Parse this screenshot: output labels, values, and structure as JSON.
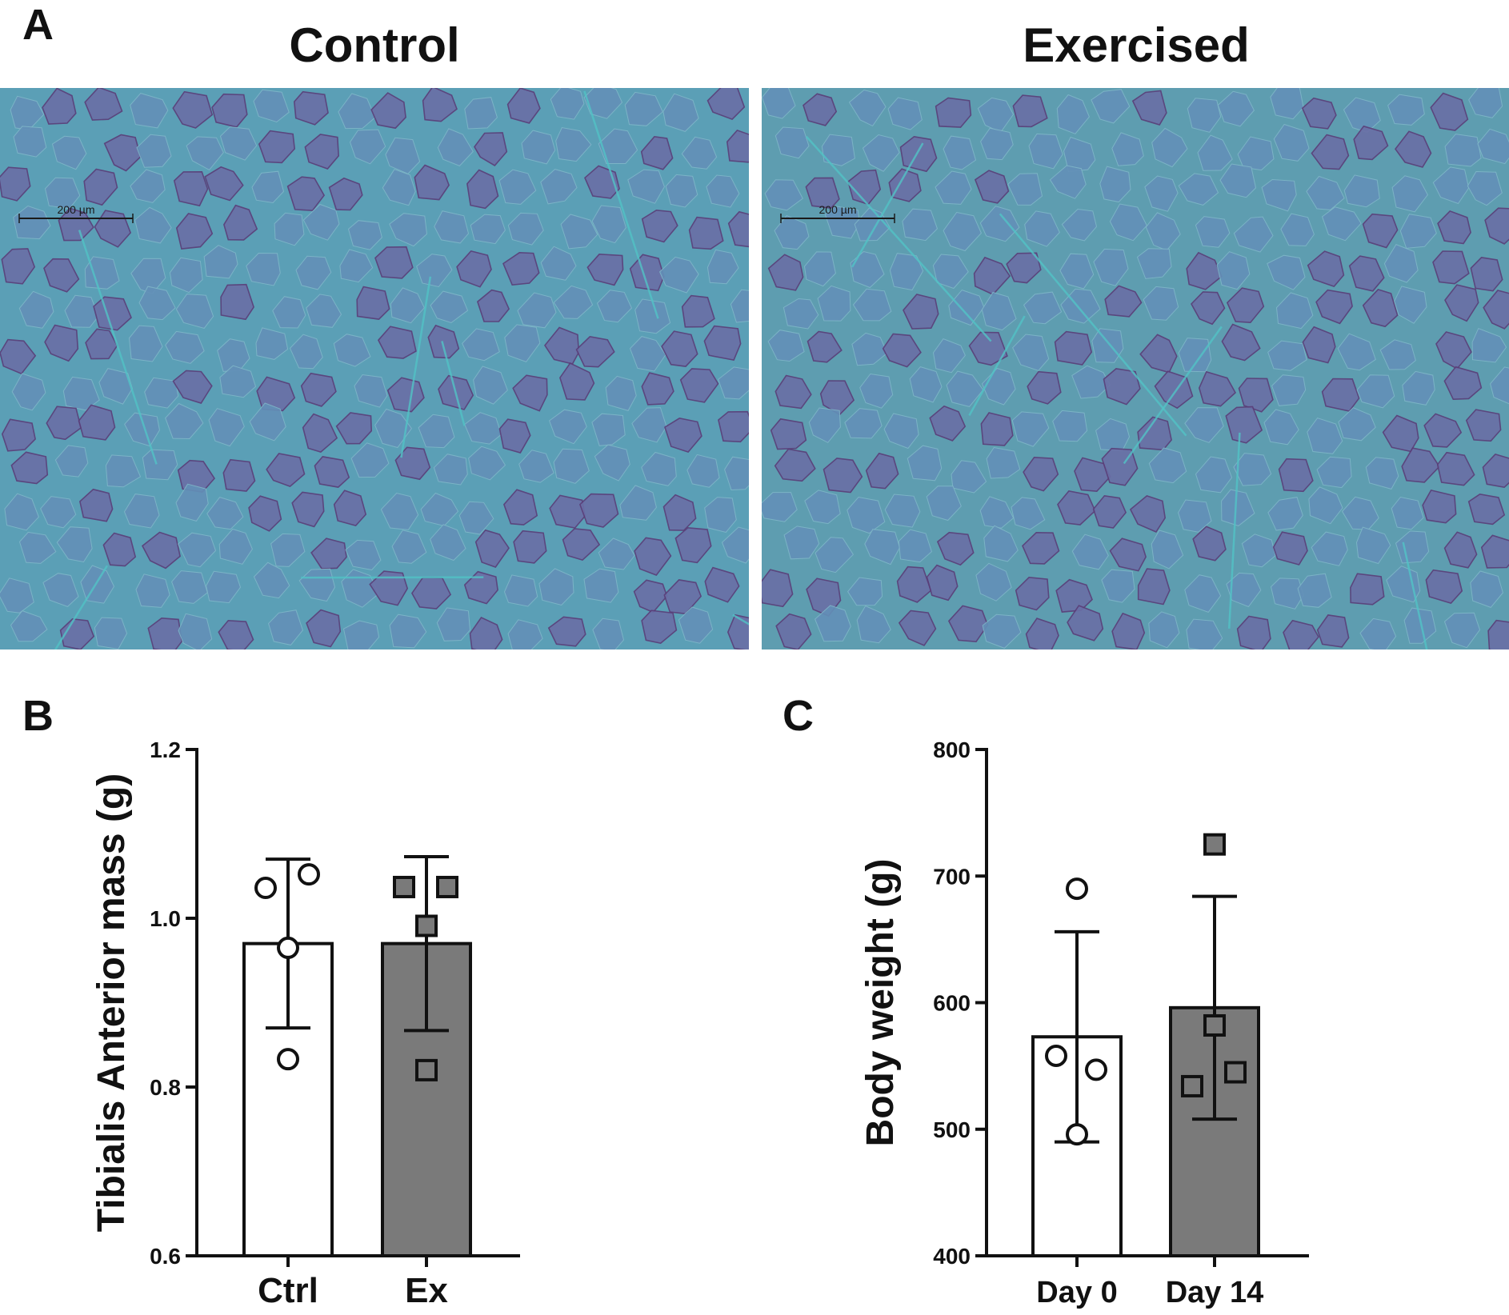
{
  "panels": {
    "a_letter": "A",
    "b_letter": "B",
    "c_letter": "C"
  },
  "micrographs": [
    {
      "title": "Control",
      "scalebar": "200 µm",
      "tint": "#5b9fb6"
    },
    {
      "title": "Exercised",
      "scalebar": "200 µm",
      "tint": "#5e9db0"
    }
  ],
  "colors": {
    "fiber_fill": "#6390b8",
    "fiber_dark_fill": "#6a6fa6",
    "fiber_border": "#5a3d78",
    "connective": "#52c3c6",
    "bar_ctrl": "#ffffff",
    "bar_ex": "#7a7a7a",
    "axis": "#111111"
  },
  "chart_data": [
    {
      "type": "bar",
      "title": "",
      "xlabel": "",
      "ylabel": "Tibialis Anterior mass (g)",
      "ylim": [
        0.6,
        1.2
      ],
      "yticks": [
        0.6,
        0.8,
        1.0,
        1.2
      ],
      "ytick_labels": [
        "0.6",
        "0.8",
        "1.0",
        "1.2"
      ],
      "categories": [
        "Ctrl",
        "Ex"
      ],
      "values": [
        0.97,
        0.97
      ],
      "errors": [
        0.1,
        0.103
      ],
      "points": [
        [
          1.036,
          1.052,
          0.965,
          0.833
        ],
        [
          1.037,
          1.037,
          0.991,
          0.82
        ]
      ],
      "markers": [
        "circle",
        "square"
      ]
    },
    {
      "type": "bar",
      "title": "",
      "xlabel": "",
      "ylabel": "Body weight (g)",
      "ylim": [
        400,
        800
      ],
      "yticks": [
        400,
        500,
        600,
        700,
        800
      ],
      "ytick_labels": [
        "400",
        "500",
        "600",
        "700",
        "800"
      ],
      "categories": [
        "Day 0",
        "Day 14"
      ],
      "values": [
        573,
        596
      ],
      "errors": [
        83,
        88
      ],
      "points": [
        [
          690,
          558,
          547,
          496
        ],
        [
          725,
          582,
          545,
          534
        ]
      ],
      "markers": [
        "circle",
        "square"
      ]
    }
  ]
}
